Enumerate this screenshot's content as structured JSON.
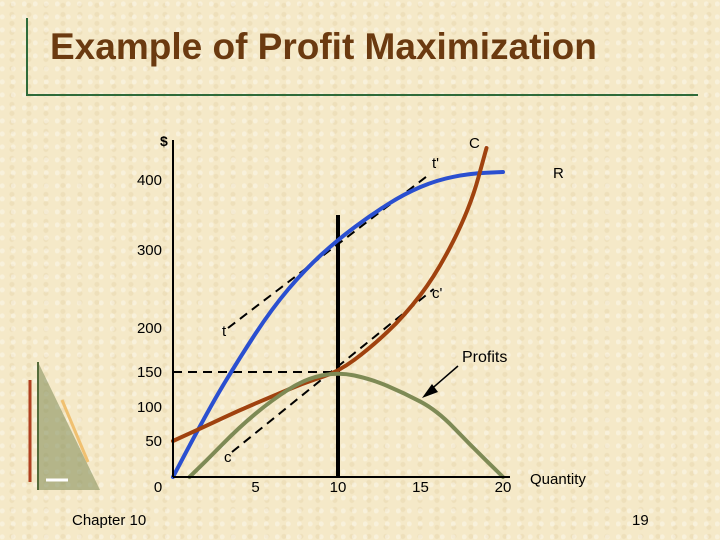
{
  "slide": {
    "title": "Example of Profit Maximization",
    "footer_left": "Chapter 10",
    "page_number": "19"
  },
  "colors": {
    "revenue": "#2a4fd0",
    "cost": "#a0420f",
    "profit": "#7e8a55",
    "title": "#6b3a10",
    "axis": "#000000"
  },
  "chart_data": {
    "type": "line",
    "ylabel": "$",
    "xlabel": "Quantity",
    "x_ticks": [
      "0",
      "5",
      "10",
      "15",
      "20"
    ],
    "y_ticks": [
      {
        "value": 50,
        "label": "50"
      },
      {
        "value": 100,
        "label": "100"
      },
      {
        "value": 150,
        "label": "150"
      },
      {
        "value": 200,
        "label": "200"
      },
      {
        "value": 300,
        "label": "300"
      },
      {
        "value": 400,
        "label": "400"
      }
    ],
    "xlim": [
      0,
      20
    ],
    "ylim": [
      0,
      450
    ],
    "series": [
      {
        "name": "R",
        "color": "#2a4fd0",
        "points": [
          [
            0,
            0
          ],
          [
            2,
            90
          ],
          [
            4,
            165
          ],
          [
            6,
            225
          ],
          [
            8,
            275
          ],
          [
            10,
            315
          ],
          [
            12,
            350
          ],
          [
            14,
            380
          ],
          [
            16,
            400
          ],
          [
            18,
            408
          ],
          [
            20,
            410
          ]
        ]
      },
      {
        "name": "C",
        "color": "#a0420f",
        "points": [
          [
            0,
            50
          ],
          [
            2,
            72
          ],
          [
            4,
            95
          ],
          [
            6,
            115
          ],
          [
            8,
            135
          ],
          [
            10,
            150
          ],
          [
            12,
            178
          ],
          [
            14,
            215
          ],
          [
            16,
            270
          ],
          [
            18,
            360
          ],
          [
            19,
            440
          ]
        ]
      },
      {
        "name": "",
        "color": "#7e8a55",
        "points": [
          [
            1,
            0
          ],
          [
            2,
            22
          ],
          [
            4,
            70
          ],
          [
            6,
            110
          ],
          [
            8,
            140
          ],
          [
            10,
            150
          ],
          [
            12,
            140
          ],
          [
            14,
            120
          ],
          [
            16,
            95
          ],
          [
            18,
            45
          ],
          [
            20,
            0
          ]
        ]
      }
    ],
    "annotations": {
      "profits_label": "Profits",
      "tangent_t_start": "t",
      "tangent_t_end": "t'",
      "tangent_c_start": "c",
      "tangent_c_end": "c'",
      "optimum_quantity": 10,
      "max_profit": 150
    }
  }
}
